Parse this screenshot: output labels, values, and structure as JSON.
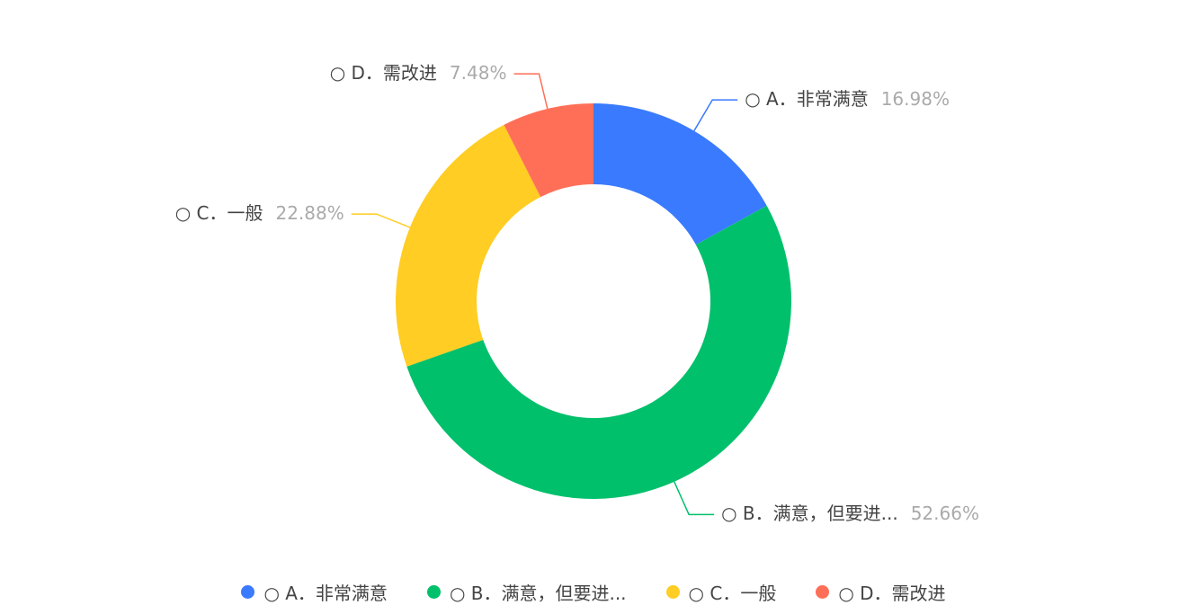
{
  "chart_data": {
    "type": "pie",
    "donut": true,
    "categories": [
      "○ A．非常满意",
      "○ B．满意，但要进...",
      "○ C．一般",
      "○ D．需改进"
    ],
    "values": [
      16.98,
      52.66,
      22.88,
      7.48
    ],
    "value_labels": [
      "16.98%",
      "52.66%",
      "22.88%",
      "7.48%"
    ],
    "colors": [
      "#3a7afe",
      "#00c06b",
      "#ffcd23",
      "#ff6f57"
    ],
    "legend_position": "bottom"
  }
}
